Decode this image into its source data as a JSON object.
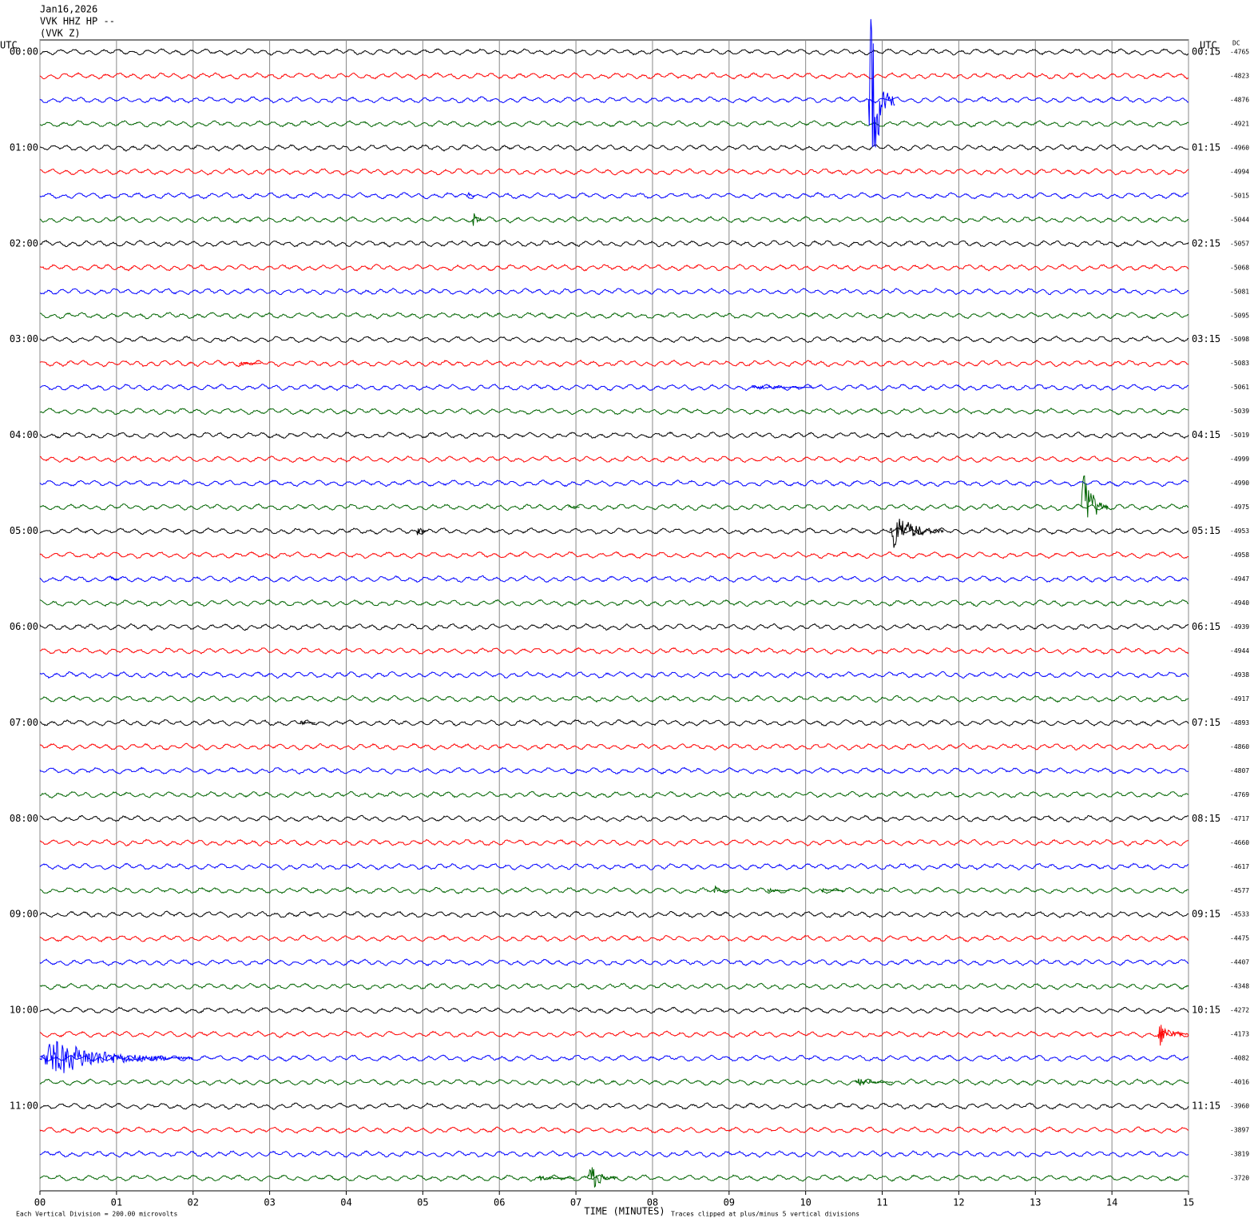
{
  "chart_data": {
    "type": "helicorder",
    "title_lines": [
      "Jan16,2026",
      "VVK HHZ HP --",
      "(VVK Z)"
    ],
    "left_axis_label": "UTC",
    "right_axis_label": "UTC",
    "dc_label": "DC",
    "left_labels": [
      "00:00",
      "01:00",
      "02:00",
      "03:00",
      "04:00",
      "05:00",
      "06:00",
      "07:00",
      "08:00",
      "09:00",
      "10:00",
      "11:00"
    ],
    "right_labels": [
      "00:15",
      "01:15",
      "02:15",
      "03:15",
      "04:15",
      "05:15",
      "06:15",
      "07:15",
      "08:15",
      "09:15",
      "10:15",
      "11:15"
    ],
    "dc_values": [
      -4765,
      -4823,
      -4876,
      -4921,
      -4960,
      -4994,
      -5015,
      -5044,
      -5057,
      -5068,
      -5081,
      -5095,
      -5098,
      -5083,
      -5061,
      -5039,
      -5019,
      -4999,
      -4990,
      -4975,
      -4953,
      -4958,
      -4947,
      -4940,
      -4939,
      -4944,
      -4938,
      -4917,
      -4893,
      -4860,
      -4807,
      -4769,
      -4717,
      -4660,
      -4617,
      -4577,
      -4533,
      -4475,
      -4407,
      -4348,
      -4272,
      -4173,
      -4082,
      -4016,
      -3960,
      -3897,
      -3819,
      -3720
    ],
    "trace_colors": [
      "#000000",
      "#ff0000",
      "#0000ff",
      "#006400"
    ],
    "xlim": [
      0,
      15
    ],
    "xticks": [
      {
        "value": 0,
        "label": "00"
      },
      {
        "value": 1,
        "label": "01"
      },
      {
        "value": 2,
        "label": "02"
      },
      {
        "value": 3,
        "label": "03"
      },
      {
        "value": 4,
        "label": "04"
      },
      {
        "value": 5,
        "label": "05"
      },
      {
        "value": 6,
        "label": "06"
      },
      {
        "value": 7,
        "label": "07"
      },
      {
        "value": 8,
        "label": "08"
      },
      {
        "value": 9,
        "label": "09"
      },
      {
        "value": 10,
        "label": "10"
      },
      {
        "value": 11,
        "label": "11"
      },
      {
        "value": 12,
        "label": "12"
      },
      {
        "value": 13,
        "label": "13"
      },
      {
        "value": 14,
        "label": "14"
      },
      {
        "value": 15,
        "label": "15"
      }
    ],
    "x_label": "TIME (MINUTES)",
    "footer_left": "Each Vertical Division =  200.00 microvolts",
    "footer_right": "Traces clipped at plus/minus 5 vertical divisions",
    "clip_divisions": 5,
    "events": [
      {
        "trace": 2,
        "minute": 10.82,
        "duration": 0.35,
        "amplitude": 6
      },
      {
        "trace": 6,
        "minute": 5.58,
        "duration": 0.1,
        "amplitude": 0.4
      },
      {
        "trace": 7,
        "minute": 5.65,
        "duration": 0.15,
        "amplitude": 0.6
      },
      {
        "trace": 13,
        "minute": 2.6,
        "duration": 0.3,
        "amplitude": 0.15
      },
      {
        "trace": 14,
        "minute": 9.3,
        "duration": 0.8,
        "amplitude": 0.15
      },
      {
        "trace": 19,
        "minute": 6.9,
        "duration": 0.15,
        "amplitude": 0.2
      },
      {
        "trace": 19,
        "minute": 13.6,
        "duration": 0.35,
        "amplitude": 2.5
      },
      {
        "trace": 20,
        "minute": 4.92,
        "duration": 0.15,
        "amplitude": 0.4
      },
      {
        "trace": 20,
        "minute": 11.1,
        "duration": 0.7,
        "amplitude": 1.3
      },
      {
        "trace": 22,
        "minute": 0.93,
        "duration": 0.1,
        "amplitude": 0.2
      },
      {
        "trace": 28,
        "minute": 3.4,
        "duration": 0.2,
        "amplitude": 0.15
      },
      {
        "trace": 35,
        "minute": 8.8,
        "duration": 0.2,
        "amplitude": 0.3
      },
      {
        "trace": 35,
        "minute": 9.5,
        "duration": 0.3,
        "amplitude": 0.15
      },
      {
        "trace": 35,
        "minute": 10.2,
        "duration": 0.3,
        "amplitude": 0.15
      },
      {
        "trace": 41,
        "minute": 14.6,
        "duration": 0.4,
        "amplitude": 0.8
      },
      {
        "trace": 42,
        "minute": 0.0,
        "duration": 2.0,
        "amplitude": 1.2
      },
      {
        "trace": 43,
        "minute": 10.65,
        "duration": 0.5,
        "amplitude": 0.25
      },
      {
        "trace": 47,
        "minute": 6.5,
        "duration": 0.5,
        "amplitude": 0.15
      },
      {
        "trace": 47,
        "minute": 7.15,
        "duration": 0.4,
        "amplitude": 1.0
      }
    ]
  }
}
